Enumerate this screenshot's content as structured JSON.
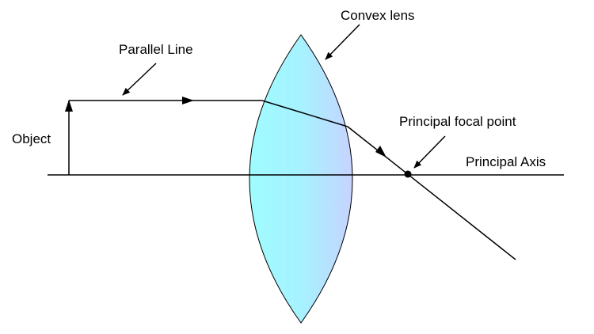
{
  "labels": {
    "convex_lens": "Convex lens",
    "parallel_line": "Parallel Line",
    "object": "Object",
    "principal_focal_point": "Principal focal point",
    "principal_axis": "Principal Axis"
  },
  "colors": {
    "line": "#000000",
    "lens_edge": "#9fffff",
    "lens_center": "#c9d8ff",
    "background": "#ffffff"
  }
}
